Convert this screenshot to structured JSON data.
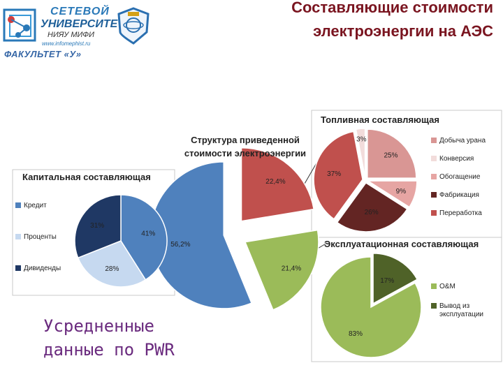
{
  "header": {
    "logo_line1": "СЕТЕВОЙ",
    "logo_line2": "УНИВЕРСИТЕТ",
    "logo_line3": "НИЯУ МИФИ",
    "logo_url": "www.infomephist.ru",
    "faculty": "ФАКУЛЬТЕТ «У»",
    "title_line1": "Составляющие стоимости",
    "title_line2": "электроэнергии на АЭС"
  },
  "footer_text_line1": "Усредненные",
  "footer_text_line2": "данные по PWR",
  "colors": {
    "title": "#7a1520",
    "blue": "#4f81bd",
    "red": "#c0504d",
    "green": "#9bbb59"
  },
  "chart_data": [
    {
      "type": "pie",
      "title": "Структура приведенной стоимости электроэнергии",
      "slices": [
        {
          "label": "56,2%",
          "value": 56.2,
          "color": "#4f81bd"
        },
        {
          "label": "22,4%",
          "value": 22.4,
          "color": "#c0504d"
        },
        {
          "label": "21,4%",
          "value": 21.4,
          "color": "#9bbb59"
        }
      ]
    },
    {
      "type": "pie",
      "title": "Капитальная составляющая",
      "legend": [
        "Кредит",
        "Проценты",
        "Дивиденды"
      ],
      "slices": [
        {
          "name": "Кредит",
          "label": "41%",
          "value": 41,
          "color": "#4f81bd"
        },
        {
          "name": "Проценты",
          "label": "28%",
          "value": 28,
          "color": "#c6d9f0"
        },
        {
          "name": "Дивиденды",
          "label": "31%",
          "value": 31,
          "color": "#1f3864"
        }
      ],
      "legend_position": "left"
    },
    {
      "type": "pie",
      "title": "Топливная составляющая",
      "legend": [
        "Добыча урана",
        "Конверсия",
        "Обогащение",
        "Фабрикация",
        "Переработка"
      ],
      "slices": [
        {
          "name": "Добыча урана",
          "label": "25%",
          "value": 25,
          "color": "#d99694"
        },
        {
          "name": "Конверсия",
          "label": "3%",
          "value": 3,
          "color": "#f2dcdb"
        },
        {
          "name": "Обогащение",
          "label": "9%",
          "value": 9,
          "color": "#e6a5a3"
        },
        {
          "name": "Фабрикация",
          "label": "26%",
          "value": 26,
          "color": "#632523"
        },
        {
          "name": "Переработка",
          "label": "37%",
          "value": 37,
          "color": "#c0504d"
        }
      ],
      "legend_position": "right"
    },
    {
      "type": "pie",
      "title": "Эксплуатационная составляющая",
      "legend": [
        "O&M",
        "Вывод из эксплуатации"
      ],
      "slices": [
        {
          "name": "O&M",
          "label": "83%",
          "value": 83,
          "color": "#9bbb59"
        },
        {
          "name": "Вывод из эксплуатации",
          "label": "17%",
          "value": 17,
          "color": "#4f6228"
        }
      ],
      "legend_position": "right"
    }
  ]
}
